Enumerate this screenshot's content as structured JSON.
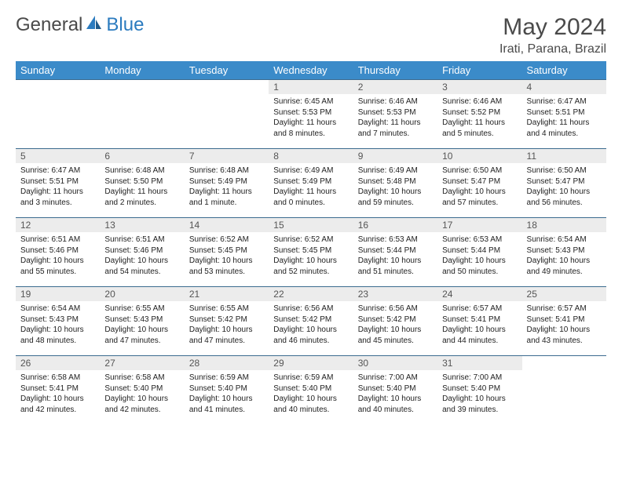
{
  "logo": {
    "part1": "General",
    "part2": "Blue"
  },
  "title": "May 2024",
  "location": "Irati, Parana, Brazil",
  "colors": {
    "header_bg": "#3b8bc9",
    "header_fg": "#ffffff",
    "row_border": "#3b6b8f",
    "daynum_bg": "#ececec",
    "text": "#222222",
    "logo_gray": "#4a4a4a",
    "logo_blue": "#2b7bbf"
  },
  "weekdays": [
    "Sunday",
    "Monday",
    "Tuesday",
    "Wednesday",
    "Thursday",
    "Friday",
    "Saturday"
  ],
  "weeks": [
    [
      {
        "n": "",
        "sr": "",
        "ss": "",
        "dl": ""
      },
      {
        "n": "",
        "sr": "",
        "ss": "",
        "dl": ""
      },
      {
        "n": "",
        "sr": "",
        "ss": "",
        "dl": ""
      },
      {
        "n": "1",
        "sr": "6:45 AM",
        "ss": "5:53 PM",
        "dl": "11 hours and 8 minutes."
      },
      {
        "n": "2",
        "sr": "6:46 AM",
        "ss": "5:53 PM",
        "dl": "11 hours and 7 minutes."
      },
      {
        "n": "3",
        "sr": "6:46 AM",
        "ss": "5:52 PM",
        "dl": "11 hours and 5 minutes."
      },
      {
        "n": "4",
        "sr": "6:47 AM",
        "ss": "5:51 PM",
        "dl": "11 hours and 4 minutes."
      }
    ],
    [
      {
        "n": "5",
        "sr": "6:47 AM",
        "ss": "5:51 PM",
        "dl": "11 hours and 3 minutes."
      },
      {
        "n": "6",
        "sr": "6:48 AM",
        "ss": "5:50 PM",
        "dl": "11 hours and 2 minutes."
      },
      {
        "n": "7",
        "sr": "6:48 AM",
        "ss": "5:49 PM",
        "dl": "11 hours and 1 minute."
      },
      {
        "n": "8",
        "sr": "6:49 AM",
        "ss": "5:49 PM",
        "dl": "11 hours and 0 minutes."
      },
      {
        "n": "9",
        "sr": "6:49 AM",
        "ss": "5:48 PM",
        "dl": "10 hours and 59 minutes."
      },
      {
        "n": "10",
        "sr": "6:50 AM",
        "ss": "5:47 PM",
        "dl": "10 hours and 57 minutes."
      },
      {
        "n": "11",
        "sr": "6:50 AM",
        "ss": "5:47 PM",
        "dl": "10 hours and 56 minutes."
      }
    ],
    [
      {
        "n": "12",
        "sr": "6:51 AM",
        "ss": "5:46 PM",
        "dl": "10 hours and 55 minutes."
      },
      {
        "n": "13",
        "sr": "6:51 AM",
        "ss": "5:46 PM",
        "dl": "10 hours and 54 minutes."
      },
      {
        "n": "14",
        "sr": "6:52 AM",
        "ss": "5:45 PM",
        "dl": "10 hours and 53 minutes."
      },
      {
        "n": "15",
        "sr": "6:52 AM",
        "ss": "5:45 PM",
        "dl": "10 hours and 52 minutes."
      },
      {
        "n": "16",
        "sr": "6:53 AM",
        "ss": "5:44 PM",
        "dl": "10 hours and 51 minutes."
      },
      {
        "n": "17",
        "sr": "6:53 AM",
        "ss": "5:44 PM",
        "dl": "10 hours and 50 minutes."
      },
      {
        "n": "18",
        "sr": "6:54 AM",
        "ss": "5:43 PM",
        "dl": "10 hours and 49 minutes."
      }
    ],
    [
      {
        "n": "19",
        "sr": "6:54 AM",
        "ss": "5:43 PM",
        "dl": "10 hours and 48 minutes."
      },
      {
        "n": "20",
        "sr": "6:55 AM",
        "ss": "5:43 PM",
        "dl": "10 hours and 47 minutes."
      },
      {
        "n": "21",
        "sr": "6:55 AM",
        "ss": "5:42 PM",
        "dl": "10 hours and 47 minutes."
      },
      {
        "n": "22",
        "sr": "6:56 AM",
        "ss": "5:42 PM",
        "dl": "10 hours and 46 minutes."
      },
      {
        "n": "23",
        "sr": "6:56 AM",
        "ss": "5:42 PM",
        "dl": "10 hours and 45 minutes."
      },
      {
        "n": "24",
        "sr": "6:57 AM",
        "ss": "5:41 PM",
        "dl": "10 hours and 44 minutes."
      },
      {
        "n": "25",
        "sr": "6:57 AM",
        "ss": "5:41 PM",
        "dl": "10 hours and 43 minutes."
      }
    ],
    [
      {
        "n": "26",
        "sr": "6:58 AM",
        "ss": "5:41 PM",
        "dl": "10 hours and 42 minutes."
      },
      {
        "n": "27",
        "sr": "6:58 AM",
        "ss": "5:40 PM",
        "dl": "10 hours and 42 minutes."
      },
      {
        "n": "28",
        "sr": "6:59 AM",
        "ss": "5:40 PM",
        "dl": "10 hours and 41 minutes."
      },
      {
        "n": "29",
        "sr": "6:59 AM",
        "ss": "5:40 PM",
        "dl": "10 hours and 40 minutes."
      },
      {
        "n": "30",
        "sr": "7:00 AM",
        "ss": "5:40 PM",
        "dl": "10 hours and 40 minutes."
      },
      {
        "n": "31",
        "sr": "7:00 AM",
        "ss": "5:40 PM",
        "dl": "10 hours and 39 minutes."
      },
      {
        "n": "",
        "sr": "",
        "ss": "",
        "dl": ""
      }
    ]
  ],
  "labels": {
    "sunrise": "Sunrise: ",
    "sunset": "Sunset: ",
    "daylight": "Daylight: "
  }
}
